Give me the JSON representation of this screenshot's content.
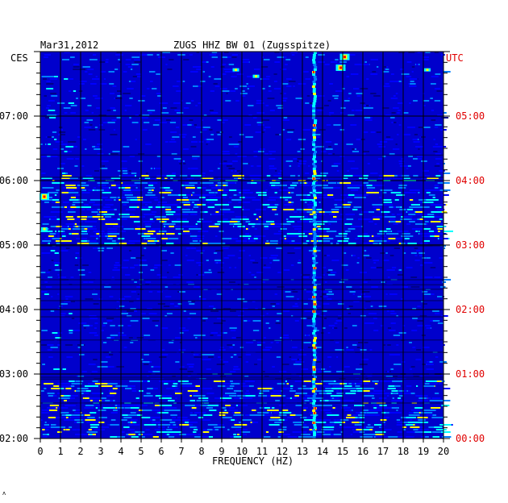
{
  "header": {
    "date": "Mar31,2012",
    "station": "ZUGS HHZ BW 01 (Zugsspitze)",
    "left_zone": "CES",
    "right_zone": "UTC"
  },
  "footer": {
    "mark": "ʌ"
  },
  "chart_data": {
    "type": "heatmap",
    "title": "ZUGS HHZ BW 01 (Zugsspitze)",
    "date": "Mar31,2012",
    "xlabel": "FREQUENCY (HZ)",
    "xlim": [
      0,
      20
    ],
    "x_ticks": [
      "0",
      "1",
      "2",
      "3",
      "4",
      "5",
      "6",
      "7",
      "8",
      "9",
      "10",
      "11",
      "12",
      "13",
      "14",
      "15",
      "16",
      "17",
      "18",
      "19",
      "20"
    ],
    "left_axis_label": "CES",
    "right_axis_label": "UTC",
    "left_time_ticks": [
      "07:00",
      "06:00",
      "05:00",
      "04:00",
      "03:00",
      "02:00"
    ],
    "right_time_ticks": [
      "05:00",
      "04:00",
      "03:00",
      "02:00",
      "01:00",
      "00:00"
    ],
    "right_tick_color": "#e00000",
    "grid": true,
    "colormap": [
      "#000088",
      "#0000ff",
      "#0080ff",
      "#00ffff",
      "#ffff00",
      "#ff0000"
    ],
    "background_color": "#0000cc",
    "persistent_lines_hz": [
      13.6
    ],
    "hotspots": [
      {
        "freq_hz": 15.1,
        "time_cest": "07:55",
        "level": "high"
      },
      {
        "freq_hz": 14.9,
        "time_cest": "07:45",
        "level": "high"
      },
      {
        "freq_hz": 9.7,
        "time_cest": "07:43",
        "level": "medium"
      },
      {
        "freq_hz": 10.7,
        "time_cest": "07:37",
        "level": "medium"
      },
      {
        "freq_hz": 0.2,
        "time_cest": "05:45",
        "level": "high"
      },
      {
        "freq_hz": 0.2,
        "time_cest": "05:15",
        "level": "medium"
      },
      {
        "freq_hz": 19.2,
        "time_cest": "07:43",
        "level": "medium"
      }
    ],
    "active_periods_cest": [
      {
        "start": "05:00",
        "end": "06:05",
        "level": "medium"
      },
      {
        "start": "02:00",
        "end": "02:55",
        "level": "medium"
      }
    ]
  }
}
